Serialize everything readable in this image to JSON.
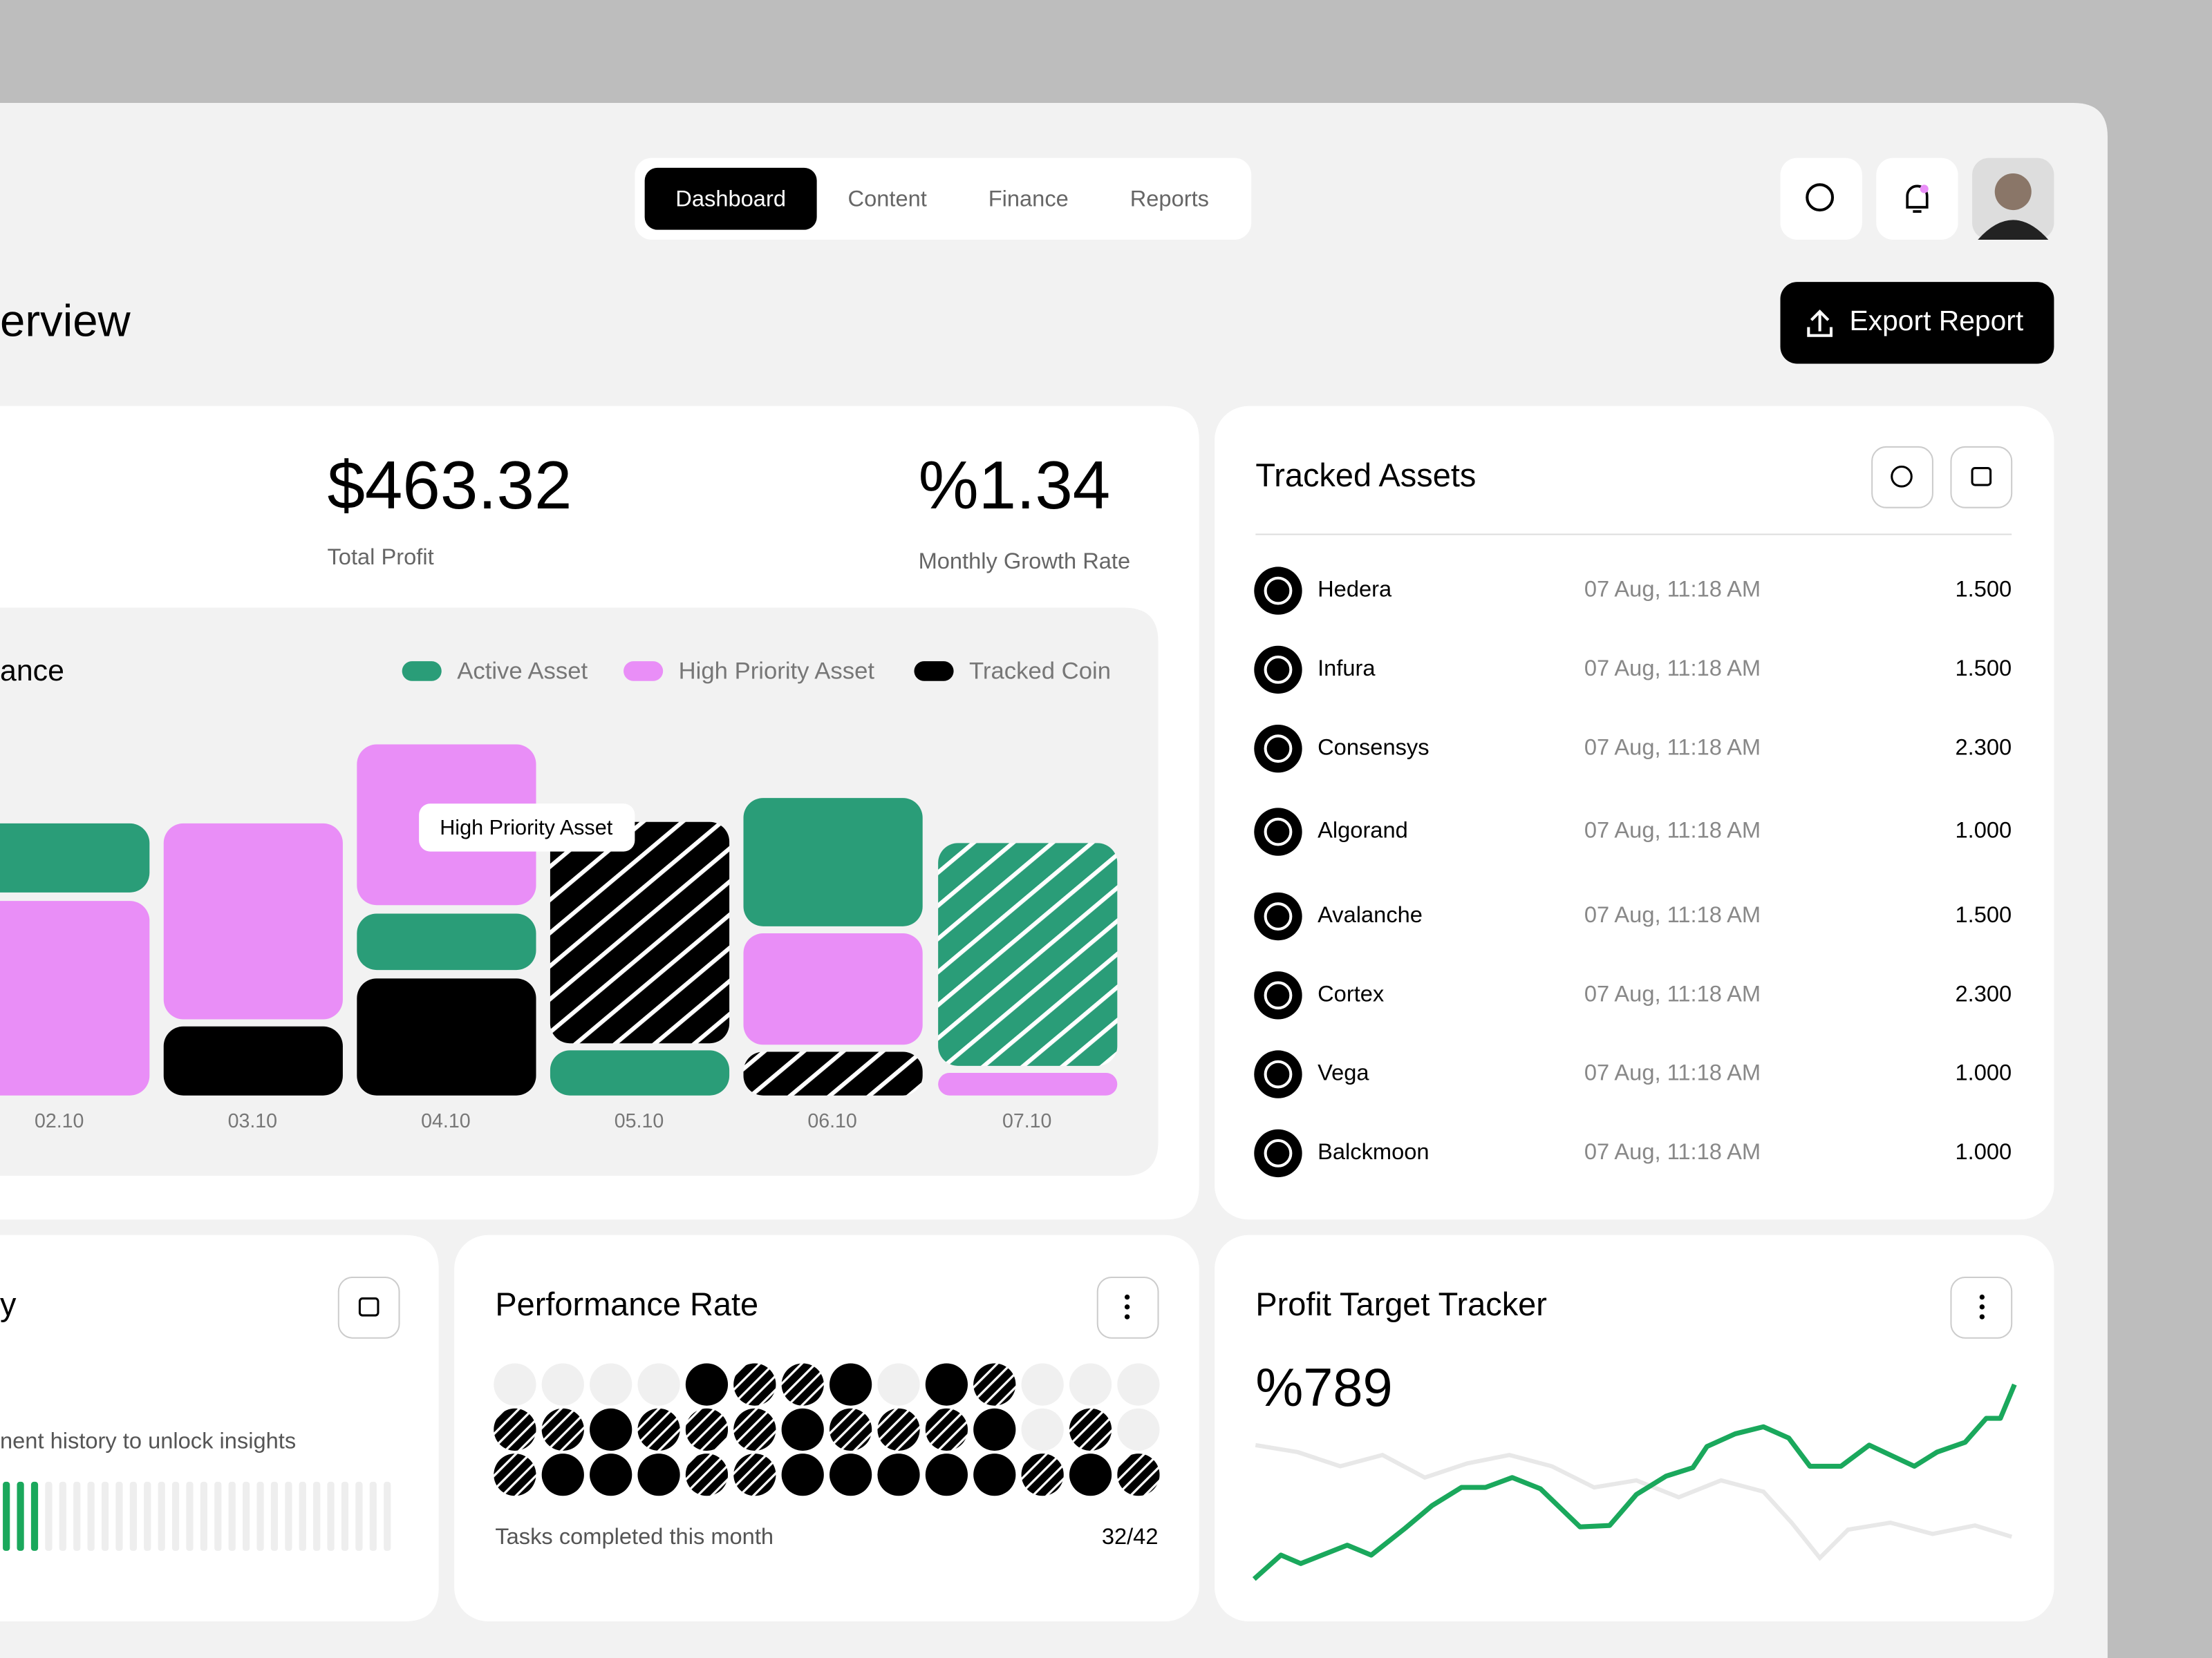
{
  "nav": {
    "tabs": [
      "Dashboard",
      "Content",
      "Finance",
      "Reports"
    ]
  },
  "header": {
    "title": "erview",
    "export": "Export Report"
  },
  "stats": [
    {
      "value": "$463.32",
      "label": "Total Profit"
    },
    {
      "value": "%1.34",
      "label": "Monthly Growth Rate"
    }
  ],
  "performance": {
    "title": "ance",
    "legend": [
      "Active Asset",
      "High Priority Asset",
      "Tracked Coin"
    ],
    "dates": [
      "02.10",
      "03.10",
      "04.10",
      "05.10",
      "06.10",
      "07.10"
    ],
    "tooltip": "High Priority Asset"
  },
  "assets": {
    "title": "Tracked Assets",
    "rows": [
      [
        "Hedera",
        "07 Aug, 11:18 AM",
        "1.500"
      ],
      [
        "Infura",
        "07 Aug, 11:18 AM",
        "1.500"
      ],
      [
        "Consensys",
        "07 Aug, 11:18 AM",
        "2.300"
      ],
      [
        "Algorand",
        "07 Aug, 11:18 AM",
        "1.000"
      ],
      [
        "Avalanche",
        "07 Aug, 11:18 AM",
        "1.500"
      ],
      [
        "Cortex",
        "07 Aug, 11:18 AM",
        "2.300"
      ],
      [
        "Vega",
        "07 Aug, 11:18 AM",
        "1.000"
      ],
      [
        "Balckmoon",
        "07 Aug, 11:18 AM",
        "1.000"
      ]
    ]
  },
  "history": {
    "title": "y",
    "text": "nent history to unlock insights"
  },
  "rate": {
    "title": "Performance Rate",
    "caption": "Tasks completed this month",
    "score": "32/42"
  },
  "profit": {
    "title": "Profit Target Tracker",
    "value": "%789"
  }
}
